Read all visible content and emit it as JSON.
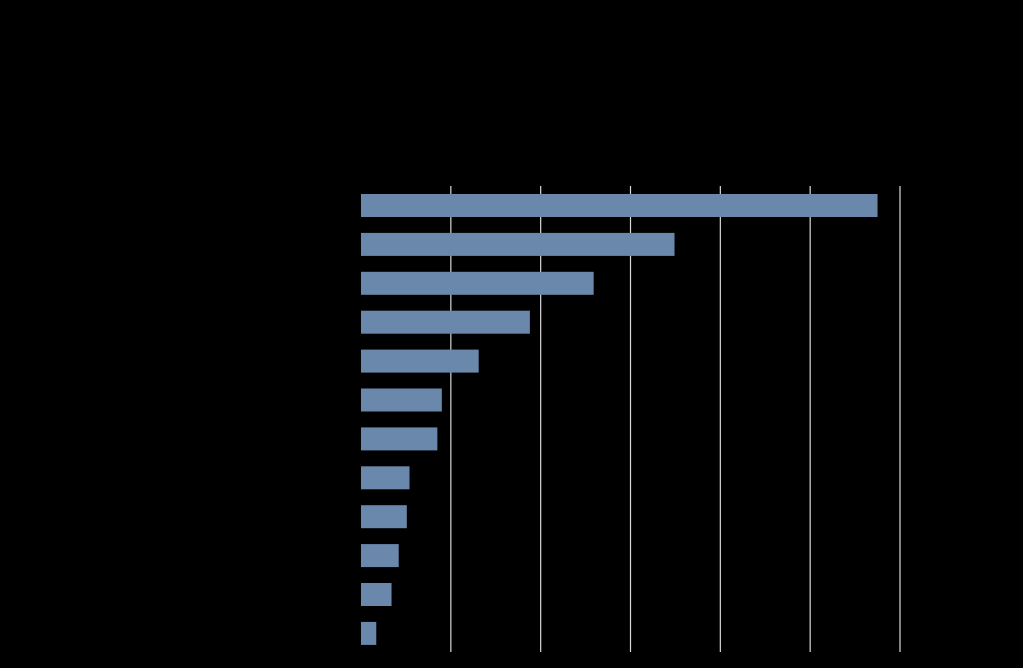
{
  "chart_data": {
    "type": "bar",
    "orientation": "horizontal",
    "title": "",
    "xlabel": "",
    "ylabel": "",
    "xlim": [
      0,
      6
    ],
    "grid": true,
    "categories": [
      "",
      "",
      "",
      "",
      "",
      "",
      "",
      "",
      "",
      "",
      "",
      ""
    ],
    "values": [
      5.75,
      3.49,
      2.59,
      1.88,
      1.31,
      0.9,
      0.85,
      0.54,
      0.51,
      0.42,
      0.34,
      0.17
    ],
    "colors": {
      "background": "#000000",
      "bar": "#6a87ac",
      "grid": "#d9d9d9"
    }
  }
}
